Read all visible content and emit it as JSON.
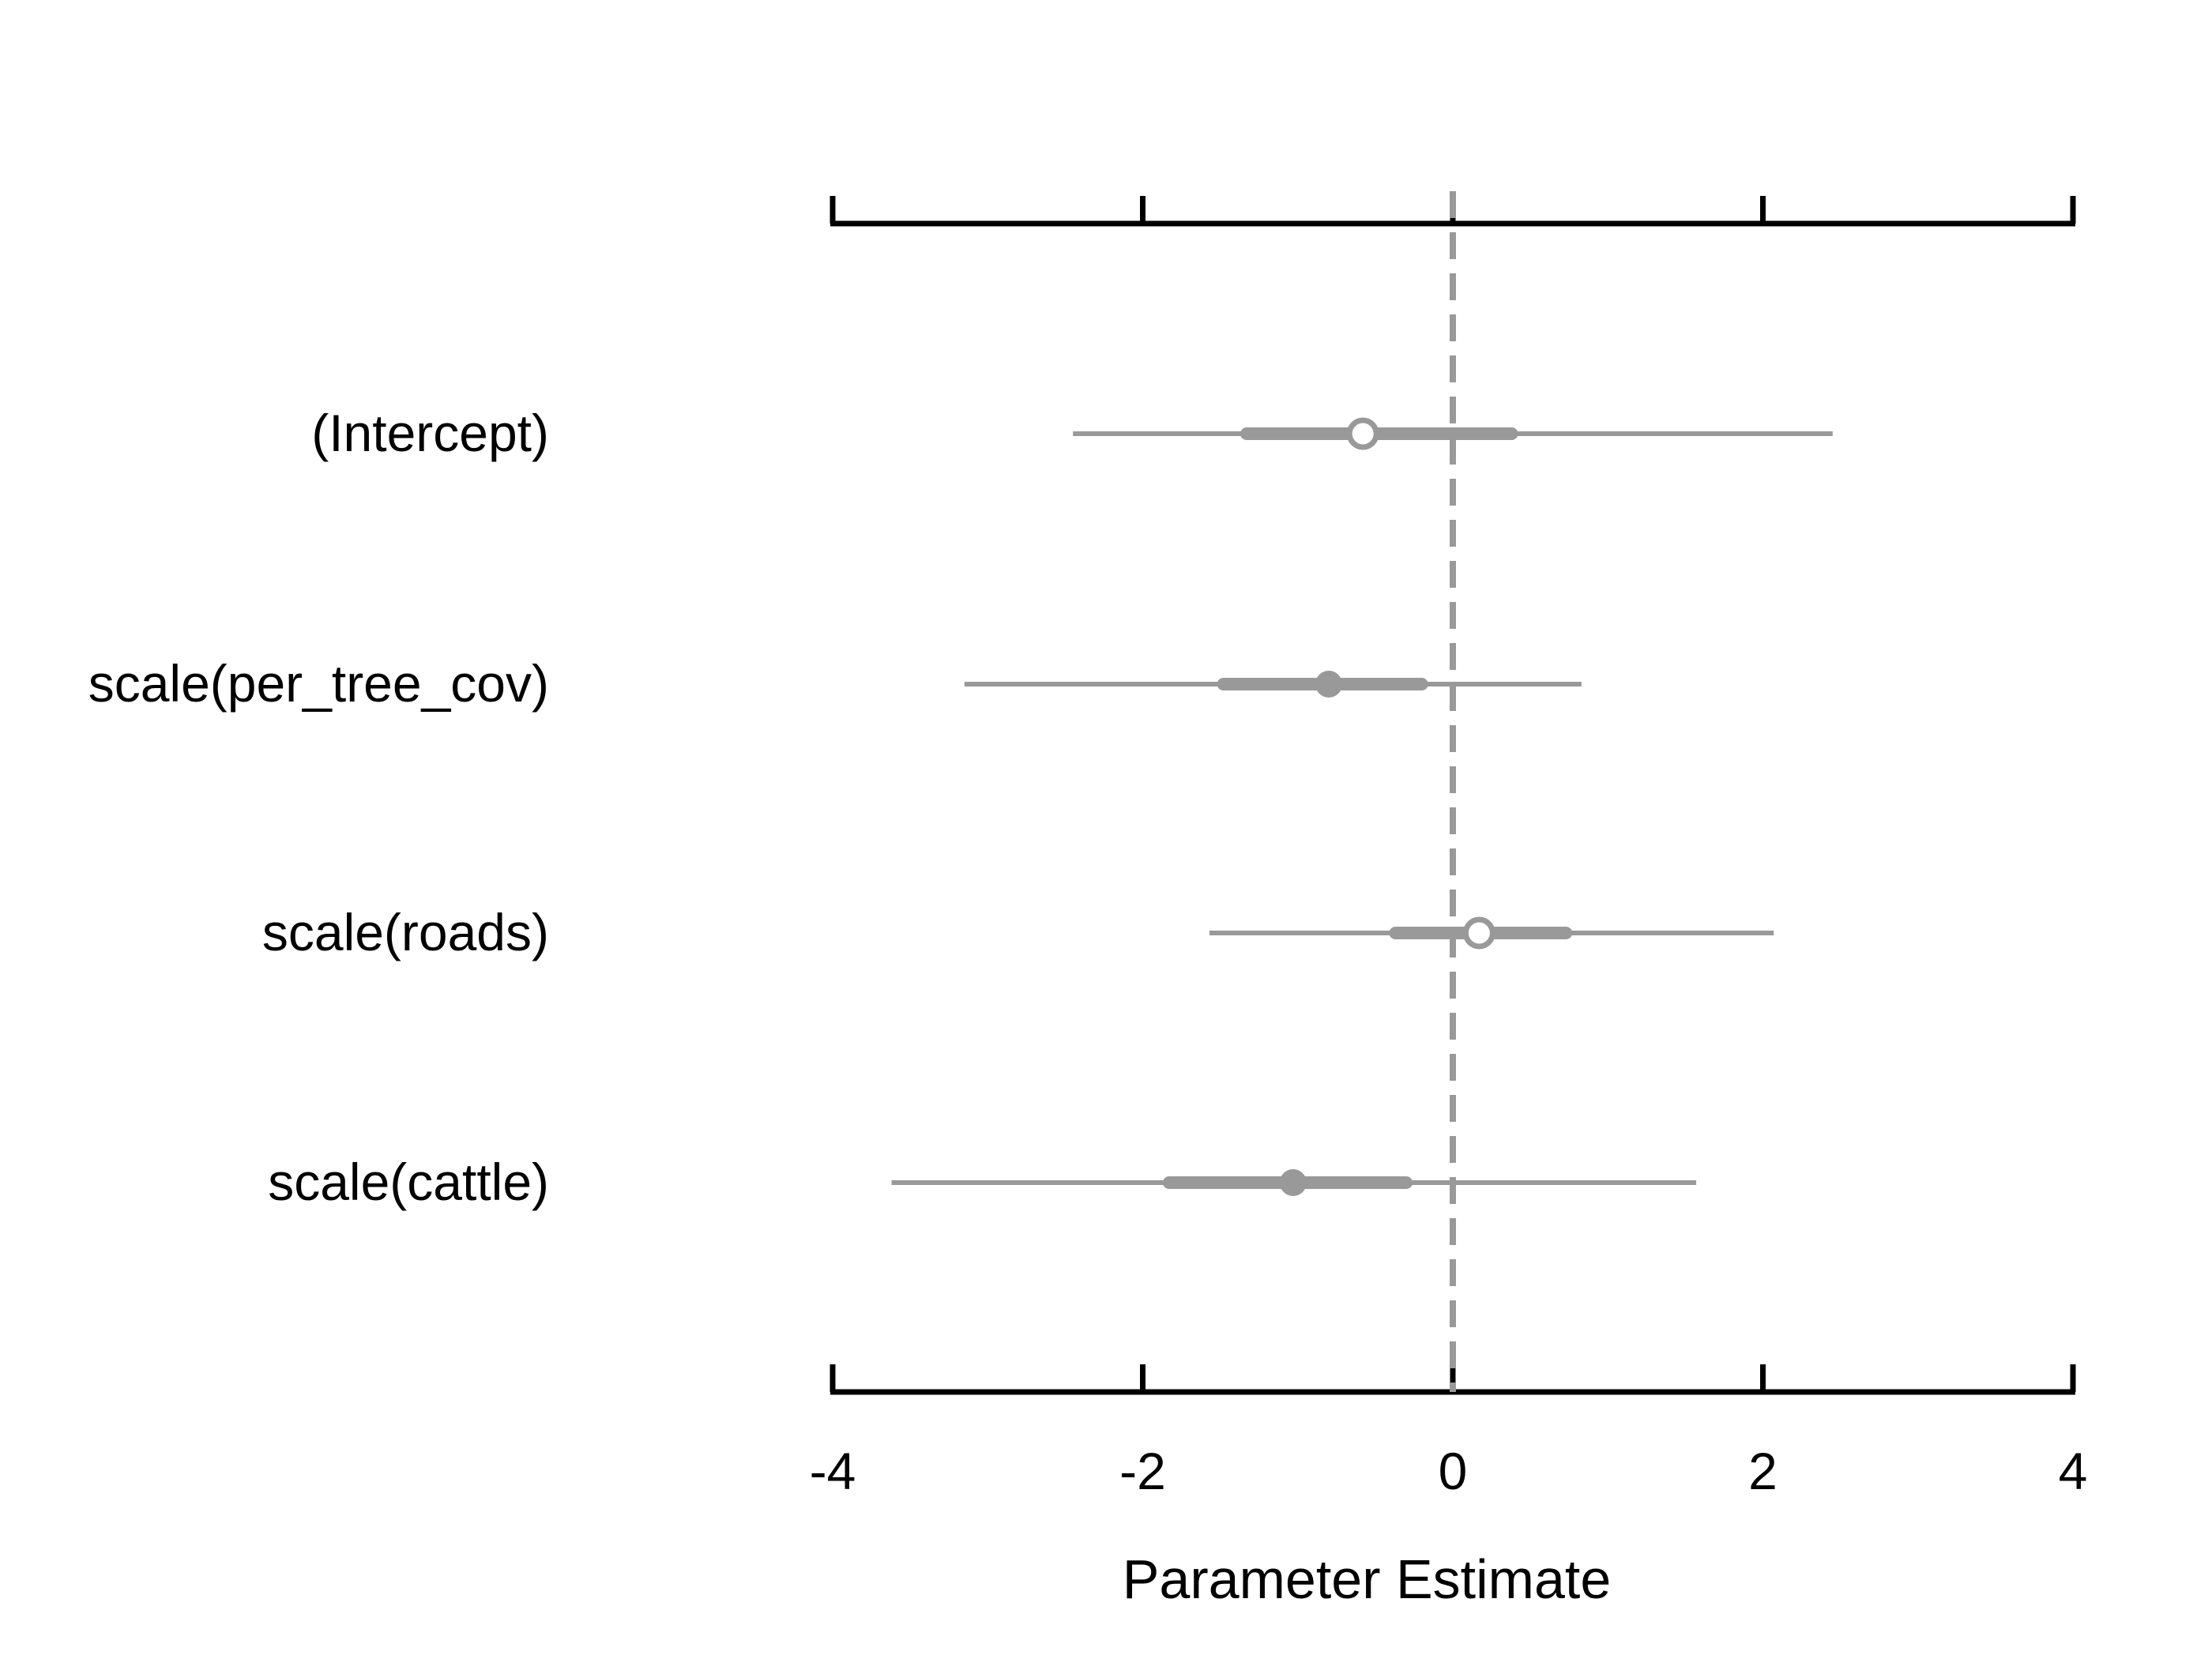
{
  "chart_data": {
    "type": "scatter",
    "title": "",
    "xlabel": "Parameter Estimate",
    "ylabel": "",
    "xlim": [
      -4,
      4
    ],
    "x_ticks": [
      -4,
      -2,
      0,
      2,
      4
    ],
    "x_tick_labels": [
      "-4",
      "-2",
      "0",
      "2",
      "4"
    ],
    "reference_line": 0,
    "grid": false,
    "legend": "none",
    "colors": {
      "interval": "#999999",
      "reference": "#999999",
      "axis": "#000000"
    },
    "parameters": [
      {
        "label": "(Intercept)",
        "estimate": -0.58,
        "inner": [
          -1.33,
          0.38
        ],
        "outer": [
          -2.45,
          2.45
        ],
        "significant": false
      },
      {
        "label": "scale(per_tree_cov)",
        "estimate": -0.8,
        "inner": [
          -1.48,
          -0.2
        ],
        "outer": [
          -3.15,
          0.83
        ],
        "significant": true
      },
      {
        "label": "scale(roads)",
        "estimate": 0.17,
        "inner": [
          -0.37,
          0.73
        ],
        "outer": [
          -1.57,
          2.07
        ],
        "significant": false
      },
      {
        "label": "scale(cattle)",
        "estimate": -1.03,
        "inner": [
          -1.83,
          -0.3
        ],
        "outer": [
          -3.62,
          1.57
        ],
        "significant": true
      }
    ]
  }
}
